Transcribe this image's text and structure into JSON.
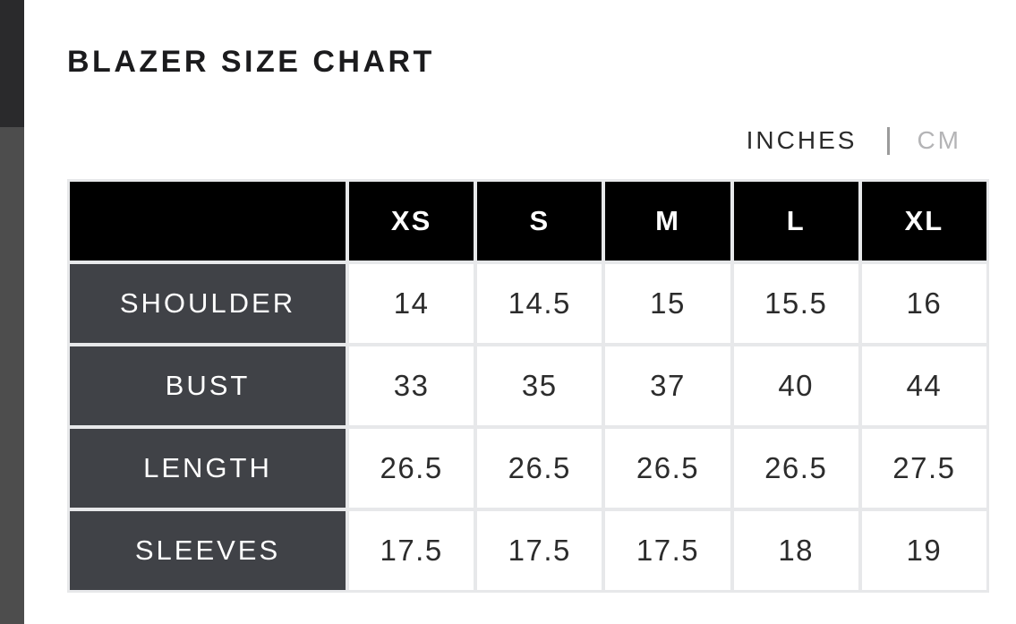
{
  "title": "BLAZER SIZE CHART",
  "unit_toggle": {
    "inches_label": "INCHES",
    "cm_label": "CM",
    "selected": "INCHES"
  },
  "chart_data": {
    "type": "table",
    "title": "BLAZER SIZE CHART",
    "unit": "INCHES",
    "columns": [
      "",
      "XS",
      "S",
      "M",
      "L",
      "XL"
    ],
    "rows": [
      {
        "label": "SHOULDER",
        "values": [
          "14",
          "14.5",
          "15",
          "15.5",
          "16"
        ]
      },
      {
        "label": "BUST",
        "values": [
          "33",
          "35",
          "37",
          "40",
          "44"
        ]
      },
      {
        "label": "LENGTH",
        "values": [
          "26.5",
          "26.5",
          "26.5",
          "26.5",
          "27.5"
        ]
      },
      {
        "label": "SLEEVES",
        "values": [
          "17.5",
          "17.5",
          "17.5",
          "18",
          "19"
        ]
      }
    ]
  },
  "colors": {
    "header-bg": "#000000",
    "header-text": "#ffffff",
    "label-bg": "#404247",
    "label-text": "#ffffff",
    "cell-bg": "#ffffff",
    "cell-text": "#2c2c2c",
    "grid-line": "#e7e8ea",
    "title-text": "#1b1b1d",
    "unit-active": "#2b2b2b",
    "unit-inactive": "#b4b4b6",
    "unit-separator": "#9b9b9b",
    "page-edge-top": "#2a2a2c",
    "page-edge-bottom": "#4d4d4d"
  }
}
